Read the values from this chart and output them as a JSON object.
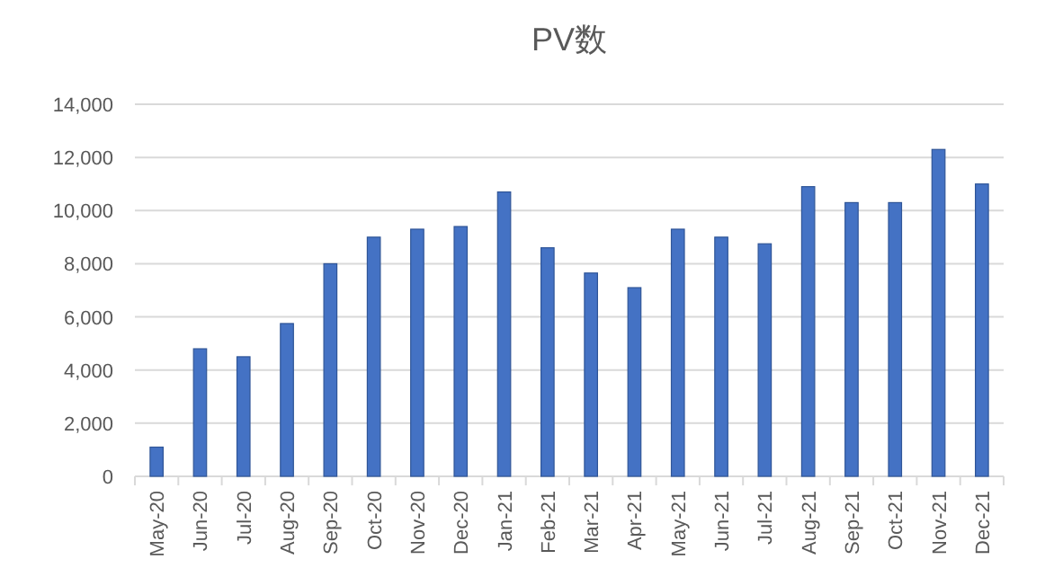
{
  "chart_data": {
    "type": "bar",
    "title": "PV数",
    "categories": [
      "May-20",
      "Jun-20",
      "Jul-20",
      "Aug-20",
      "Sep-20",
      "Oct-20",
      "Nov-20",
      "Dec-20",
      "Jan-21",
      "Feb-21",
      "Mar-21",
      "Apr-21",
      "May-21",
      "Jun-21",
      "Jul-21",
      "Aug-21",
      "Sep-21",
      "Oct-21",
      "Nov-21",
      "Dec-21"
    ],
    "values": [
      1100,
      4800,
      4500,
      5750,
      8000,
      9000,
      9300,
      9400,
      10700,
      8600,
      7650,
      7100,
      9300,
      9000,
      8750,
      10900,
      10300,
      10300,
      12300,
      11000
    ],
    "color": "#4472c4",
    "ylim": [
      0,
      14000
    ],
    "yticks": [
      {
        "value": 0,
        "label": "0"
      },
      {
        "value": 2000,
        "label": "2,000"
      },
      {
        "value": 4000,
        "label": "4,000"
      },
      {
        "value": 6000,
        "label": "6,000"
      },
      {
        "value": 8000,
        "label": "8,000"
      },
      {
        "value": 10000,
        "label": "10,000"
      },
      {
        "value": 12000,
        "label": "12,000"
      },
      {
        "value": 14000,
        "label": "14,000"
      }
    ],
    "grid": "y"
  }
}
